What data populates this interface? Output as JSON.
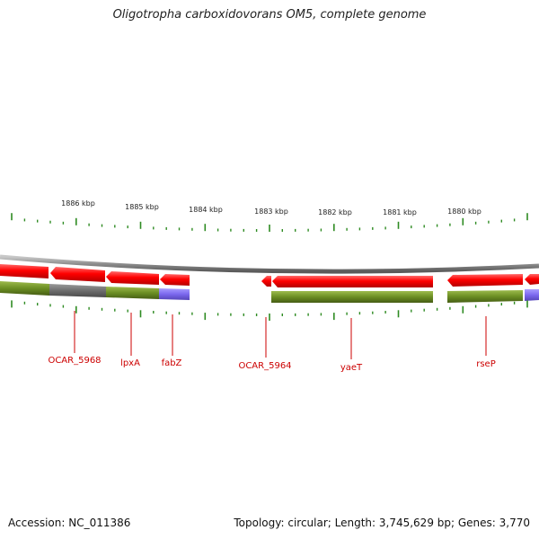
{
  "title": "Oligotropha carboxidovorans OM5, complete genome",
  "footer": {
    "accession": "Accession: NC_011386",
    "summary": "Topology: circular; Length: 3,745,629 bp; Genes: 3,770"
  },
  "colors": {
    "backbone": "#8c8c8c",
    "cds": "#ff0000",
    "cog_green": "#6b8e23",
    "cog_gray": "#707070",
    "cog_purple": "#7b68ee",
    "ticks": "#2e8b22",
    "gene_label": "#cc0000"
  },
  "scale": {
    "unit": "kbp",
    "labels": [
      "1886 kbp",
      "1885 kbp",
      "1884 kbp",
      "1883 kbp",
      "1882 kbp",
      "1881 kbp",
      "1880 kbp"
    ]
  },
  "genes": [
    {
      "label": "OCAR_5968",
      "strand": "-"
    },
    {
      "label": "lpxA",
      "strand": "-"
    },
    {
      "label": "fabZ",
      "strand": "-"
    },
    {
      "label": "OCAR_5964",
      "strand": "-"
    },
    {
      "label": "yaeT",
      "strand": "-"
    },
    {
      "label": "rseP",
      "strand": "-"
    }
  ]
}
